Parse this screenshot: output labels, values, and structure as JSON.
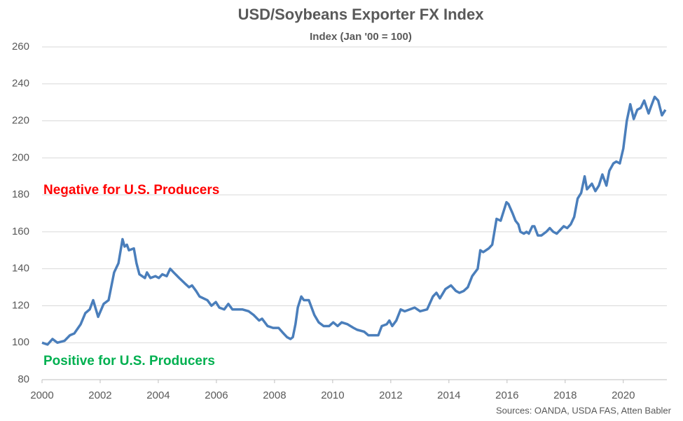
{
  "chart_data": {
    "type": "line",
    "title": "USD/Soybeans Exporter FX Index",
    "subtitle": "Index (Jan '00 = 100)",
    "annotations": [
      "Negative for U.S. Producers",
      "Positive for U.S. Producers"
    ],
    "annotation_colors": [
      "#ff0000",
      "#00b050"
    ],
    "source": "Sources: OANDA, USDA FAS, Atten Babler",
    "grid": true,
    "xlim": [
      2000,
      2021.5
    ],
    "xticks": [
      2000,
      2002,
      2004,
      2006,
      2008,
      2010,
      2012,
      2014,
      2016,
      2018,
      2020
    ],
    "ylim": [
      80,
      260
    ],
    "yticks": [
      80,
      100,
      120,
      140,
      160,
      180,
      200,
      220,
      240,
      260
    ],
    "x": [
      2000.0,
      2000.19,
      2000.36,
      2000.53,
      2000.77,
      2000.96,
      2001.11,
      2001.33,
      2001.49,
      2001.64,
      2001.76,
      2001.93,
      2002.12,
      2002.29,
      2002.48,
      2002.63,
      2002.77,
      2002.84,
      2002.92,
      2002.99,
      2003.16,
      2003.25,
      2003.35,
      2003.54,
      2003.61,
      2003.73,
      2003.9,
      2004.02,
      2004.14,
      2004.29,
      2004.41,
      2004.53,
      2004.72,
      2004.92,
      2005.06,
      2005.16,
      2005.3,
      2005.42,
      2005.69,
      2005.83,
      2005.98,
      2006.1,
      2006.27,
      2006.41,
      2006.55,
      2006.75,
      2006.89,
      2007.11,
      2007.28,
      2007.47,
      2007.57,
      2007.76,
      2007.95,
      2008.14,
      2008.31,
      2008.43,
      2008.55,
      2008.63,
      2008.72,
      2008.8,
      2008.92,
      2009.01,
      2009.18,
      2009.37,
      2009.52,
      2009.69,
      2009.88,
      2010.02,
      2010.17,
      2010.31,
      2010.51,
      2010.72,
      2010.84,
      2011.08,
      2011.23,
      2011.37,
      2011.57,
      2011.69,
      2011.86,
      2011.95,
      2012.05,
      2012.19,
      2012.34,
      2012.48,
      2012.65,
      2012.82,
      2013.01,
      2013.25,
      2013.45,
      2013.57,
      2013.69,
      2013.88,
      2014.07,
      2014.24,
      2014.36,
      2014.51,
      2014.65,
      2014.8,
      2014.99,
      2015.08,
      2015.18,
      2015.37,
      2015.49,
      2015.64,
      2015.78,
      2015.9,
      2015.98,
      2016.05,
      2016.19,
      2016.29,
      2016.39,
      2016.46,
      2016.58,
      2016.67,
      2016.75,
      2016.87,
      2016.94,
      2017.06,
      2017.18,
      2017.35,
      2017.47,
      2017.59,
      2017.71,
      2017.83,
      2017.95,
      2018.07,
      2018.19,
      2018.31,
      2018.43,
      2018.55,
      2018.67,
      2018.75,
      2018.92,
      2019.04,
      2019.16,
      2019.28,
      2019.42,
      2019.52,
      2019.66,
      2019.76,
      2019.88,
      2020.0,
      2020.12,
      2020.24,
      2020.36,
      2020.48,
      2020.6,
      2020.72,
      2020.87,
      2020.96,
      2021.08,
      2021.2,
      2021.33,
      2021.45
    ],
    "series": [
      {
        "name": "USD/Soybeans Exporter FX Index",
        "color": "#4a7ebb",
        "values": [
          100,
          99,
          102,
          100,
          101,
          104,
          105,
          110,
          116,
          118,
          123,
          114,
          121,
          123,
          138,
          143,
          156,
          152,
          153,
          150,
          151,
          143,
          137,
          135,
          138,
          135,
          136,
          135,
          137,
          136,
          140,
          138,
          135,
          132,
          130,
          131,
          128,
          125,
          123,
          120,
          122,
          119,
          118,
          121,
          118,
          118,
          118,
          117,
          115,
          112,
          113,
          109,
          108,
          108,
          105,
          103,
          102,
          103,
          110,
          119,
          125,
          123,
          123,
          115,
          111,
          109,
          109,
          111,
          109,
          111,
          110,
          108,
          107,
          106,
          104,
          104,
          104,
          109,
          110,
          112,
          109,
          112,
          118,
          117,
          118,
          119,
          117,
          118,
          125,
          127,
          124,
          129,
          131,
          128,
          127,
          128,
          130,
          136,
          140,
          150,
          149,
          151,
          153,
          167,
          166,
          172,
          176,
          175,
          170,
          166,
          164,
          160,
          159,
          160,
          159,
          163,
          163,
          158,
          158,
          160,
          162,
          160,
          159,
          161,
          163,
          162,
          164,
          168,
          178,
          181,
          190,
          183,
          186,
          182,
          185,
          191,
          185,
          193,
          197,
          198,
          197,
          205,
          220,
          229,
          221,
          226,
          227,
          231,
          224,
          228,
          233,
          231,
          223,
          226
        ]
      }
    ]
  }
}
